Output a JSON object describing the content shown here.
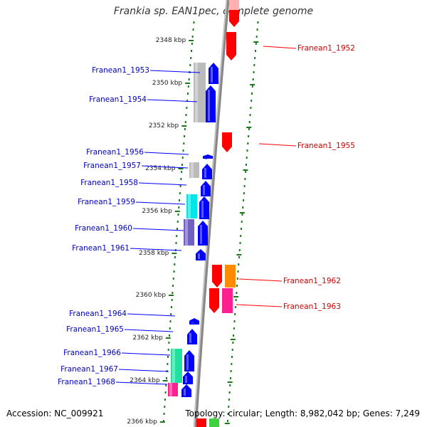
{
  "title": "Frankia sp. EAN1pec, complete genome",
  "footer": {
    "accession": "Accession: NC_009921",
    "summary": "Topology: circular; Length: 8,982,042 bp; Genes: 7,249"
  },
  "colors": {
    "forward": "#0000ff",
    "reverse": "#ff0000",
    "label_forward": "#0000bb",
    "label_reverse": "#cc0000",
    "tick": "#1a7a1a",
    "backbone": "#888888"
  },
  "ticks": [
    "2348 kbp",
    "2350 kbp",
    "2352 kbp",
    "2354 kbp",
    "2356 kbp",
    "2358 kbp",
    "2360 kbp",
    "2362 kbp",
    "2364 kbp",
    "2366 kbp"
  ],
  "genes_left": [
    {
      "label": "Franean1_1953",
      "strand": "+",
      "cog_color": "#bbbbbb"
    },
    {
      "label": "Franean1_1954",
      "strand": "+",
      "cog_color": "#bbbbbb"
    },
    {
      "label": "Franean1_1956",
      "strand": "+",
      "cog_color": null
    },
    {
      "label": "Franean1_1957",
      "strand": "+",
      "cog_color": "#bbbbbb"
    },
    {
      "label": "Franean1_1958",
      "strand": "+",
      "cog_color": null
    },
    {
      "label": "Franean1_1959",
      "strand": "+",
      "cog_color": "#00e5e5"
    },
    {
      "label": "Franean1_1960",
      "strand": "+",
      "cog_color": "#7060c0"
    },
    {
      "label": "Franean1_1961",
      "strand": "+",
      "cog_color": null
    },
    {
      "label": "Franean1_1964",
      "strand": "+",
      "cog_color": null
    },
    {
      "label": "Franean1_1965",
      "strand": "+",
      "cog_color": null
    },
    {
      "label": "Franean1_1966",
      "strand": "+",
      "cog_color": "#20e0a0"
    },
    {
      "label": "Franean1_1967",
      "strand": "+",
      "cog_color": null
    },
    {
      "label": "Franean1_1968",
      "strand": "+",
      "cog_color": "#ff2090"
    }
  ],
  "genes_right": [
    {
      "label": "Franean1_1952",
      "strand": "-",
      "cog_color": null
    },
    {
      "label": "Franean1_1955",
      "strand": "-",
      "cog_color": null
    },
    {
      "label": "Franean1_1962",
      "strand": "-",
      "cog_color": "#ff8c00"
    },
    {
      "label": "Franean1_1963",
      "strand": "-",
      "cog_color": "#ff2090"
    }
  ]
}
